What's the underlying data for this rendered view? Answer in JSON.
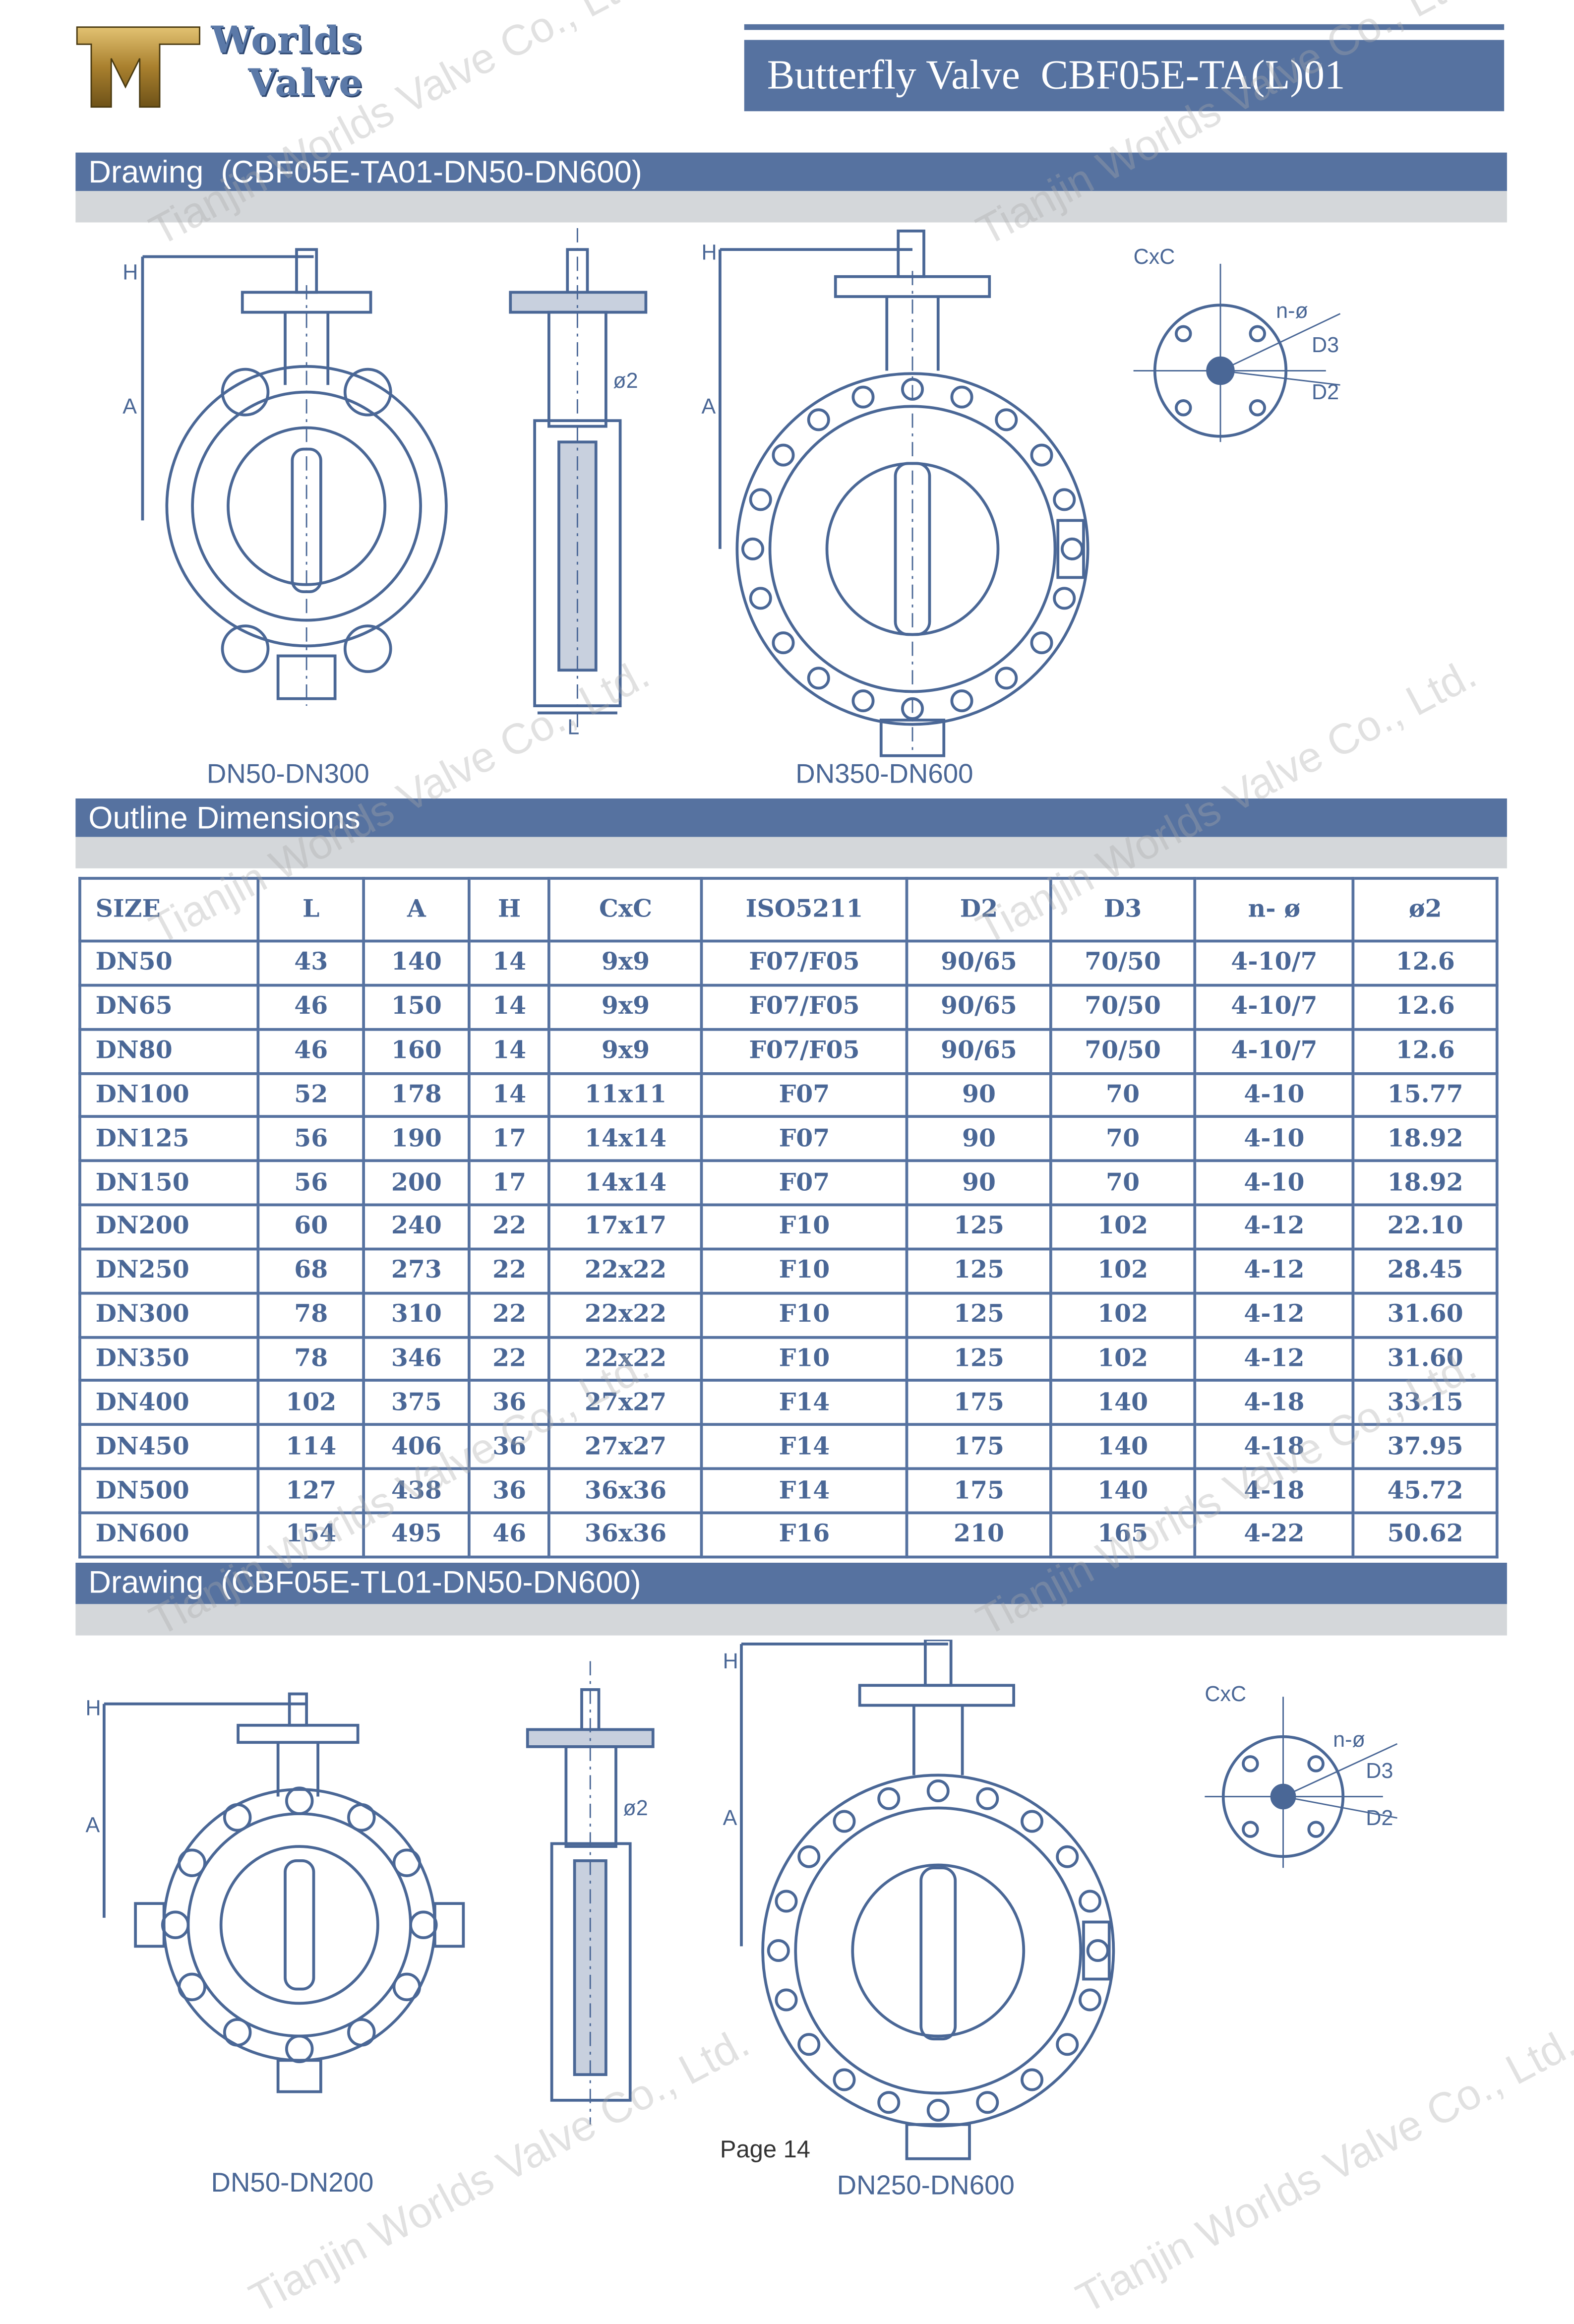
{
  "header": {
    "logo_text_line1": "Worlds",
    "logo_text_line2": "Valve",
    "title": "Butterfly Valve  CBF05E-TA(L)01"
  },
  "sections": {
    "drawing1_title": "Drawing  (CBF05E-TA01-DN50-DN600)",
    "outline_title": "Outline Dimensions",
    "drawing2_title": "Drawing  (CBF05E-TL01-DN50-DN600)"
  },
  "drawing1": {
    "label_left": "DN50-DN300",
    "label_right": "DN350-DN600"
  },
  "drawing2": {
    "label_left": "DN50-DN200",
    "label_right": "DN250-DN600"
  },
  "dimension_labels": {
    "h": "H",
    "a": "A",
    "l": "L",
    "phi2": "ø2",
    "cxc": "CxC",
    "n_phi": "n-ø",
    "d3": "D3",
    "d2": "D2"
  },
  "table": {
    "headers": [
      "SIZE",
      "L",
      "A",
      "H",
      "CxC",
      "ISO5211",
      "D2",
      "D3",
      "n- ø",
      "ø2"
    ],
    "rows": [
      [
        "DN50",
        "43",
        "140",
        "14",
        "9x9",
        "F07/F05",
        "90/65",
        "70/50",
        "4-10/7",
        "12.6"
      ],
      [
        "DN65",
        "46",
        "150",
        "14",
        "9x9",
        "F07/F05",
        "90/65",
        "70/50",
        "4-10/7",
        "12.6"
      ],
      [
        "DN80",
        "46",
        "160",
        "14",
        "9x9",
        "F07/F05",
        "90/65",
        "70/50",
        "4-10/7",
        "12.6"
      ],
      [
        "DN100",
        "52",
        "178",
        "14",
        "11x11",
        "F07",
        "90",
        "70",
        "4-10",
        "15.77"
      ],
      [
        "DN125",
        "56",
        "190",
        "17",
        "14x14",
        "F07",
        "90",
        "70",
        "4-10",
        "18.92"
      ],
      [
        "DN150",
        "56",
        "200",
        "17",
        "14x14",
        "F07",
        "90",
        "70",
        "4-10",
        "18.92"
      ],
      [
        "DN200",
        "60",
        "240",
        "22",
        "17x17",
        "F10",
        "125",
        "102",
        "4-12",
        "22.10"
      ],
      [
        "DN250",
        "68",
        "273",
        "22",
        "22x22",
        "F10",
        "125",
        "102",
        "4-12",
        "28.45"
      ],
      [
        "DN300",
        "78",
        "310",
        "22",
        "22x22",
        "F10",
        "125",
        "102",
        "4-12",
        "31.60"
      ],
      [
        "DN350",
        "78",
        "346",
        "22",
        "22x22",
        "F10",
        "125",
        "102",
        "4-12",
        "31.60"
      ],
      [
        "DN400",
        "102",
        "375",
        "36",
        "27x27",
        "F14",
        "175",
        "140",
        "4-18",
        "33.15"
      ],
      [
        "DN450",
        "114",
        "406",
        "36",
        "27x27",
        "F14",
        "175",
        "140",
        "4-18",
        "37.95"
      ],
      [
        "DN500",
        "127",
        "438",
        "36",
        "36x36",
        "F14",
        "175",
        "140",
        "4-18",
        "45.72"
      ],
      [
        "DN600",
        "154",
        "495",
        "46",
        "36x36",
        "F16",
        "210",
        "165",
        "4-22",
        "50.62"
      ]
    ]
  },
  "footer": {
    "page": "Page 14"
  },
  "watermark": "Tianjin Worlds Valve Co., Ltd.",
  "colors": {
    "brand_blue": "#5672a0",
    "grey_bar": "#d4d7da",
    "logo_gold": "#b08a3a"
  }
}
